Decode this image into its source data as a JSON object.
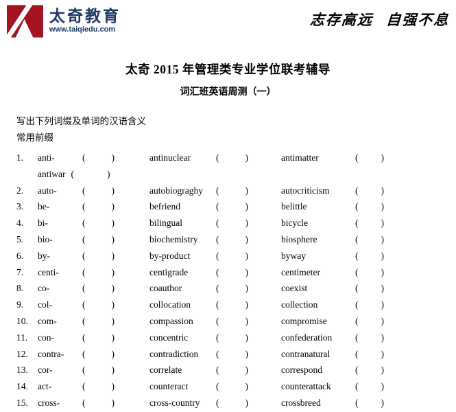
{
  "header": {
    "brand": "太奇教育",
    "url": "www.taiqiedu.com",
    "motto": "志存高远 自强不息",
    "logo_color": "#a31420",
    "brand_color": "#1e3a64"
  },
  "title": "太奇 2015 年管理类专业学位联考辅导",
  "subtitle": "词汇班英语周测（一）",
  "instructions": "写出下列词缀及单词的汉语含义",
  "section": "常用前缀",
  "list": {
    "paren_open": "(",
    "paren_close": ")",
    "rows": [
      {
        "num": "1.",
        "prefix": "anti-",
        "word2": "antinuclear",
        "word3": "antimatter",
        "extra": "antiwar"
      },
      {
        "num": "2.",
        "prefix": "auto-",
        "word2": "autobiograghy",
        "word3": "autocriticism"
      },
      {
        "num": "3.",
        "prefix": "be-",
        "word2": "befriend",
        "word3": "belittle"
      },
      {
        "num": "4.",
        "prefix": "bi-",
        "word2": "bilingual",
        "word3": "bicycle"
      },
      {
        "num": "5.",
        "prefix": "bio-",
        "word2": "biochemistry",
        "word3": "biosphere"
      },
      {
        "num": "6.",
        "prefix": "by-",
        "word2": "by-product",
        "word3": "byway"
      },
      {
        "num": "7.",
        "prefix": "centi-",
        "word2": "centigrade",
        "word3": "centimeter"
      },
      {
        "num": "8.",
        "prefix": "co-",
        "word2": "coauthor",
        "word3": "coexist"
      },
      {
        "num": "9.",
        "prefix": "col-",
        "word2": "collocation",
        "word3": "collection"
      },
      {
        "num": "10.",
        "prefix": "com-",
        "word2": "compassion",
        "word3": "compromise"
      },
      {
        "num": "11.",
        "prefix": "con-",
        "word2": "concentric",
        "word3": "confederation"
      },
      {
        "num": "12.",
        "prefix": "contra-",
        "word2": "contradiction",
        "word3": "contranatural"
      },
      {
        "num": "13.",
        "prefix": "cor-",
        "word2": "correlate",
        "word3": "correspond"
      },
      {
        "num": "14.",
        "prefix": "act-",
        "word2": "counteract",
        "word3": "counterattack"
      },
      {
        "num": "15.",
        "prefix": "cross-",
        "word2": "cross-country",
        "word3": "crossbreed"
      }
    ]
  }
}
